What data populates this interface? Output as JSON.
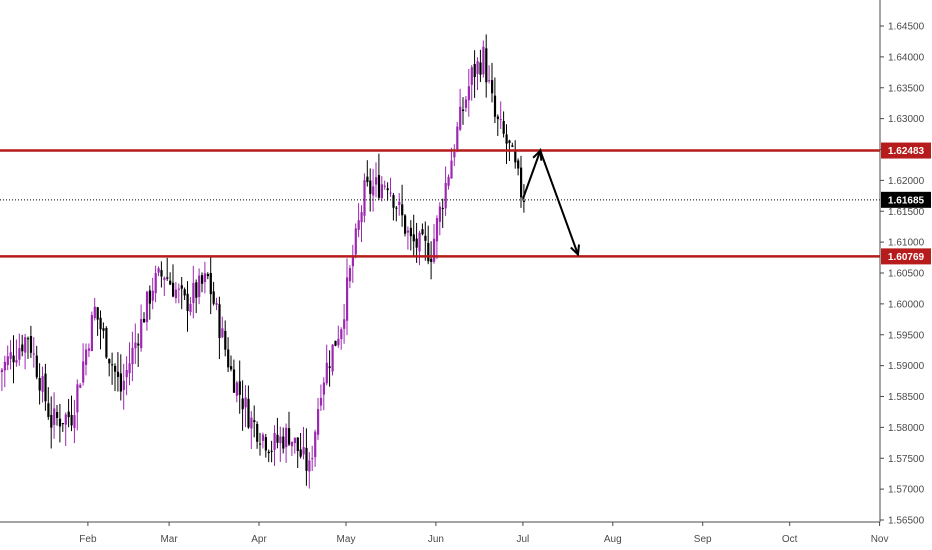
{
  "chart_data": {
    "type": "candlestick",
    "ylim": [
      1.5645,
      1.6485
    ],
    "y_ticks": [
      "1.64500",
      "1.64000",
      "1.63500",
      "1.63000",
      "1.62500",
      "1.62000",
      "1.61500",
      "1.61000",
      "1.60500",
      "1.60000",
      "1.59500",
      "1.59000",
      "1.58500",
      "1.58000",
      "1.57500",
      "1.57000",
      "1.56500"
    ],
    "x_ticks": [
      {
        "label": "Feb",
        "day": 31
      },
      {
        "label": "Mar",
        "day": 59
      },
      {
        "label": "Apr",
        "day": 90
      },
      {
        "label": "May",
        "day": 120
      },
      {
        "label": "Jun",
        "day": 151
      },
      {
        "label": "Jul",
        "day": 181
      },
      {
        "label": "Aug",
        "day": 212
      },
      {
        "label": "Sep",
        "day": 243
      },
      {
        "label": "Oct",
        "day": 273
      },
      {
        "label": "Nov",
        "day": 304
      }
    ],
    "candle_anchors": [
      {
        "day": 0,
        "close": 1.589
      },
      {
        "day": 10,
        "close": 1.595
      },
      {
        "day": 18,
        "close": 1.581
      },
      {
        "day": 25,
        "close": 1.582
      },
      {
        "day": 33,
        "close": 1.599
      },
      {
        "day": 42,
        "close": 1.586
      },
      {
        "day": 53,
        "close": 1.603
      },
      {
        "day": 57,
        "close": 1.605
      },
      {
        "day": 64,
        "close": 1.6
      },
      {
        "day": 72,
        "close": 1.604
      },
      {
        "day": 80,
        "close": 1.589
      },
      {
        "day": 87,
        "close": 1.581
      },
      {
        "day": 94,
        "close": 1.577
      },
      {
        "day": 100,
        "close": 1.579
      },
      {
        "day": 107,
        "close": 1.573
      },
      {
        "day": 111,
        "close": 1.587
      },
      {
        "day": 118,
        "close": 1.597
      },
      {
        "day": 126,
        "close": 1.618
      },
      {
        "day": 134,
        "close": 1.62
      },
      {
        "day": 142,
        "close": 1.61
      },
      {
        "day": 149,
        "close": 1.6085
      },
      {
        "day": 158,
        "close": 1.628
      },
      {
        "day": 163,
        "close": 1.637
      },
      {
        "day": 167,
        "close": 1.64
      },
      {
        "day": 171,
        "close": 1.63
      },
      {
        "day": 176,
        "close": 1.625
      },
      {
        "day": 181,
        "close": 1.6165
      }
    ],
    "bull_color": "#9c27b0",
    "bear_color": "#000000",
    "horizontal_lines": [
      {
        "value": 1.62483,
        "label": "1.62483",
        "color": "#b71c1c"
      },
      {
        "value": 1.60769,
        "label": "1.60769",
        "color": "#b71c1c"
      }
    ],
    "last_price": {
      "value": 1.61685,
      "label": "1.61685",
      "color": "#000000"
    },
    "projection": [
      {
        "day": 181,
        "value": 1.617
      },
      {
        "day": 187,
        "value": 1.6248
      },
      {
        "day": 200,
        "value": 1.608
      }
    ],
    "grid": false
  }
}
